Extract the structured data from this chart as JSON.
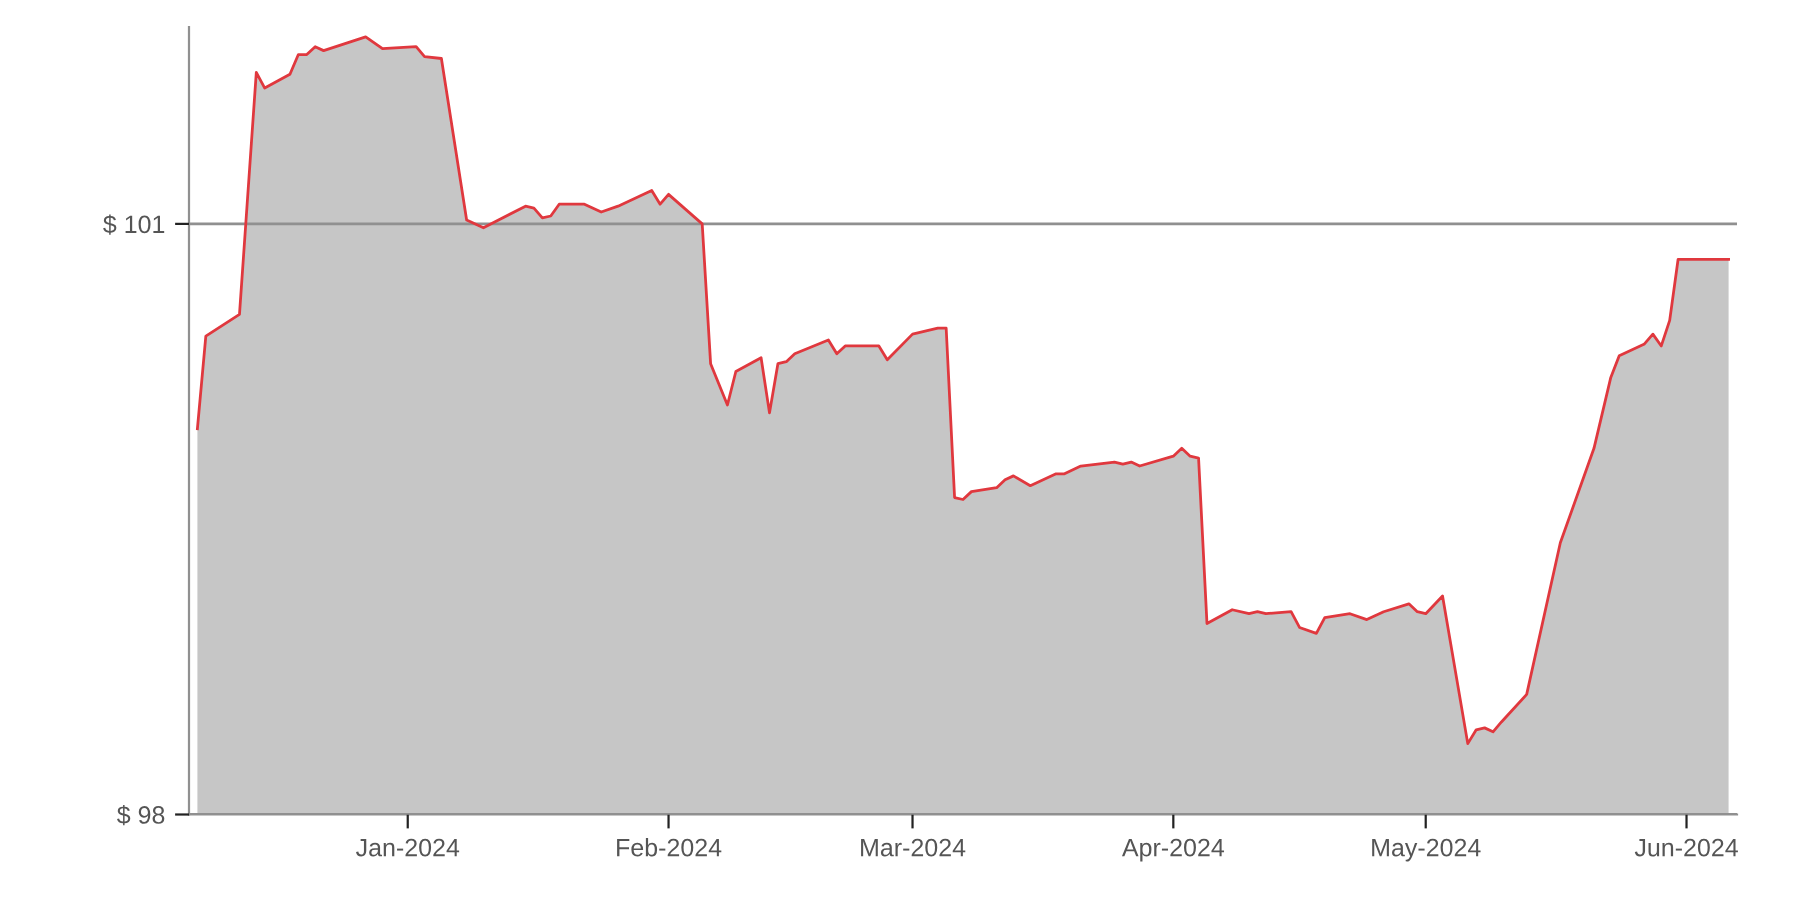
{
  "chart_data": {
    "type": "area",
    "x": [
      "2023-12-07",
      "2023-12-08",
      "2023-12-12",
      "2023-12-14",
      "2023-12-15",
      "2023-12-18",
      "2023-12-19",
      "2023-12-20",
      "2023-12-21",
      "2023-12-22",
      "2023-12-27",
      "2023-12-29",
      "2024-01-02",
      "2024-01-03",
      "2024-01-05",
      "2024-01-08",
      "2024-01-10",
      "2024-01-15",
      "2024-01-16",
      "2024-01-17",
      "2024-01-18",
      "2024-01-19",
      "2024-01-22",
      "2024-01-24",
      "2024-01-26",
      "2024-01-30",
      "2024-01-31",
      "2024-02-01",
      "2024-02-05",
      "2024-02-06",
      "2024-02-08",
      "2024-02-09",
      "2024-02-12",
      "2024-02-13",
      "2024-02-14",
      "2024-02-15",
      "2024-02-16",
      "2024-02-20",
      "2024-02-21",
      "2024-02-22",
      "2024-02-26",
      "2024-02-27",
      "2024-03-01",
      "2024-03-04",
      "2024-03-05",
      "2024-03-06",
      "2024-03-07",
      "2024-03-08",
      "2024-03-11",
      "2024-03-12",
      "2024-03-13",
      "2024-03-15",
      "2024-03-18",
      "2024-03-19",
      "2024-03-21",
      "2024-03-25",
      "2024-03-26",
      "2024-03-27",
      "2024-03-28",
      "2024-04-01",
      "2024-04-02",
      "2024-04-03",
      "2024-04-04",
      "2024-04-05",
      "2024-04-08",
      "2024-04-10",
      "2024-04-11",
      "2024-04-12",
      "2024-04-15",
      "2024-04-16",
      "2024-04-18",
      "2024-04-19",
      "2024-04-22",
      "2024-04-24",
      "2024-04-26",
      "2024-04-29",
      "2024-04-30",
      "2024-05-01",
      "2024-05-03",
      "2024-05-06",
      "2024-05-07",
      "2024-05-08",
      "2024-05-09",
      "2024-05-10",
      "2024-05-13",
      "2024-05-17",
      "2024-05-21",
      "2024-05-23",
      "2024-05-24",
      "2024-05-27",
      "2024-05-28",
      "2024-05-29",
      "2024-05-30",
      "2024-05-31",
      "2024-06-06"
    ],
    "series": [
      {
        "color": "#e0383e",
        "values": [
          99.96,
          100.43,
          100.54,
          101.77,
          101.69,
          101.76,
          101.86,
          101.86,
          101.9,
          101.88,
          101.95,
          101.89,
          101.9,
          101.85,
          101.84,
          101.02,
          100.98,
          101.09,
          101.08,
          101.03,
          101.04,
          101.1,
          101.1,
          101.06,
          101.09,
          101.17,
          101.1,
          101.15,
          101.0,
          100.29,
          100.08,
          100.25,
          100.32,
          100.04,
          100.29,
          100.3,
          100.34,
          100.41,
          100.34,
          100.38,
          100.38,
          100.31,
          100.44,
          100.47,
          100.47,
          99.61,
          99.6,
          99.64,
          99.66,
          99.7,
          99.72,
          99.67,
          99.73,
          99.73,
          99.77,
          99.79,
          99.78,
          99.79,
          99.77,
          99.82,
          99.86,
          99.82,
          99.81,
          98.97,
          99.04,
          99.02,
          99.03,
          99.02,
          99.03,
          98.95,
          98.92,
          99.0,
          99.02,
          98.99,
          99.03,
          99.07,
          99.03,
          99.02,
          99.11,
          98.36,
          98.43,
          98.44,
          98.42,
          98.47,
          98.61,
          99.38,
          99.86,
          100.22,
          100.33,
          100.39,
          100.44,
          100.38,
          100.51,
          100.82,
          100.82
        ]
      }
    ],
    "xlim": [
      "2023-12-06",
      "2024-06-07"
    ],
    "xticks": [
      {
        "value": "2024-01-01",
        "label": "Jan-2024"
      },
      {
        "value": "2024-02-01",
        "label": "Feb-2024"
      },
      {
        "value": "2024-03-01",
        "label": "Mar-2024"
      },
      {
        "value": "2024-04-01",
        "label": "Apr-2024"
      },
      {
        "value": "2024-05-01",
        "label": "May-2024"
      },
      {
        "value": "2024-06-01",
        "label": "Jun-2024"
      }
    ],
    "ylim": [
      98,
      102
    ],
    "yticks": [
      {
        "value": 98,
        "label": "$ 98"
      },
      {
        "value": 101,
        "label": "$ 101"
      }
    ],
    "grid": "y"
  }
}
